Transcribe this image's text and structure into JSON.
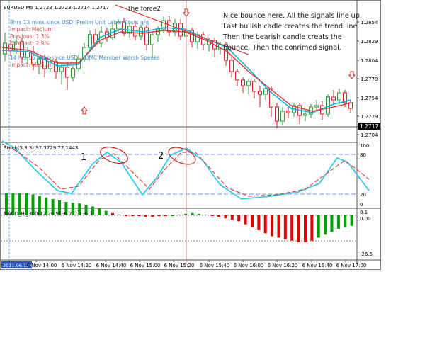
{
  "main_chart": {
    "symbol_line": "EURUSD,M5  1.2723 1.2723 1.2714 1.2717",
    "indicator_label": "the force2",
    "news": [
      {
        "headline": "8hrs 13 mins since USD: Prelim Unit Labor Costs q/q",
        "impact": "Impact: Medium",
        "previous": "Previous: 1.3%",
        "forecast": "Forecast: 2.9%"
      },
      {
        "headline": "14 hrs 16 mins since USD: FOMC Member Warsh Speaks",
        "impact": "Impact: Medium"
      }
    ],
    "annotation": "Nice bounce here. All the signals line up. Last bullish cadle creates the trend line. Then the bearish candle creats the bounce. Then the conrimed signal.",
    "price_ticks": [
      "1.2854",
      "1.2829",
      "1.2804",
      "1.2779",
      "1.2754",
      "1.2729",
      "1.2704"
    ],
    "current_price": "1.2717"
  },
  "stoch": {
    "label": "Stoch(5,3,3) 92.3729 72.1443",
    "level_ticks": [
      "100",
      "80",
      "20",
      "0"
    ],
    "marker_1": "1",
    "marker_2": "2"
  },
  "macd": {
    "label": "MACD_Hi_300(12,26,9) -6.7 0.0 -6.7",
    "level_ticks": [
      "8.1",
      "0.00",
      "-26.5"
    ]
  },
  "time_axis": {
    "first_label": "2011.06.13 00",
    "labels": [
      "6 Nov 14:00",
      "6 Nov 14:20",
      "6 Nov 14:40",
      "6 Nov 15:00",
      "6 Nov 15:20",
      "6 Nov 15:40",
      "6 Nov 16:00",
      "6 Nov 16:20",
      "6 Nov 16:40",
      "6 Nov 17:00"
    ]
  },
  "colors": {
    "candle_up": "#2e9b2e",
    "candle_down": "#d42020",
    "ma_fast": "#00b7e6",
    "ma_slow": "#e03030",
    "macd_up": "#00a000",
    "macd_down": "#e00000",
    "level_line": "#6699ff",
    "news_text": "#3c8fd8",
    "impact_text": "#e05050"
  }
}
